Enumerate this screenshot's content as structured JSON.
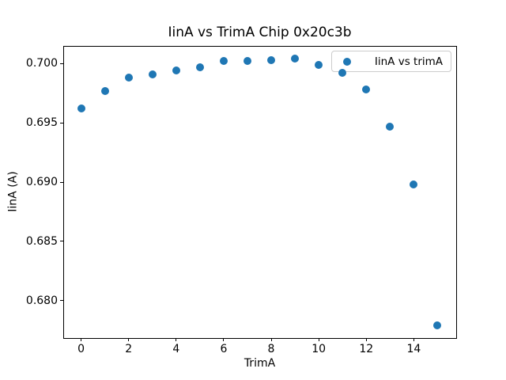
{
  "figure": {
    "title": "IinA vs TrimA Chip 0x20c3b"
  },
  "chart_data": {
    "type": "scatter",
    "title": "IinA vs TrimA Chip 0x20c3b",
    "xlabel": "TrimA",
    "ylabel": "IinA (A)",
    "grid": false,
    "legend_position": "upper right",
    "marker_color": "#1f77b4",
    "xlim": [
      -0.75,
      15.75
    ],
    "ylim": [
      0.6769,
      0.7015
    ],
    "xticks": [
      {
        "value": 0,
        "label": "0"
      },
      {
        "value": 2,
        "label": "2"
      },
      {
        "value": 4,
        "label": "4"
      },
      {
        "value": 6,
        "label": "6"
      },
      {
        "value": 8,
        "label": "8"
      },
      {
        "value": 10,
        "label": "10"
      },
      {
        "value": 12,
        "label": "12"
      },
      {
        "value": 14,
        "label": "14"
      }
    ],
    "yticks": [
      {
        "value": 0.7,
        "label": "0.700"
      },
      {
        "value": 0.695,
        "label": "0.695"
      },
      {
        "value": 0.69,
        "label": "0.690"
      },
      {
        "value": 0.685,
        "label": "0.685"
      },
      {
        "value": 0.68,
        "label": "0.680"
      }
    ],
    "series": [
      {
        "name": "IinA vs trimA",
        "marker": "circle",
        "color": "#1f77b4",
        "x": [
          0,
          1,
          2,
          3,
          4,
          5,
          6,
          7,
          8,
          9,
          10,
          11,
          12,
          13,
          14,
          15
        ],
        "y": [
          0.6962,
          0.6977,
          0.6988,
          0.6991,
          0.6994,
          0.6997,
          0.7002,
          0.7002,
          0.7003,
          0.7004,
          0.6999,
          0.6992,
          0.6978,
          0.6947,
          0.6898,
          0.6779
        ]
      }
    ]
  }
}
